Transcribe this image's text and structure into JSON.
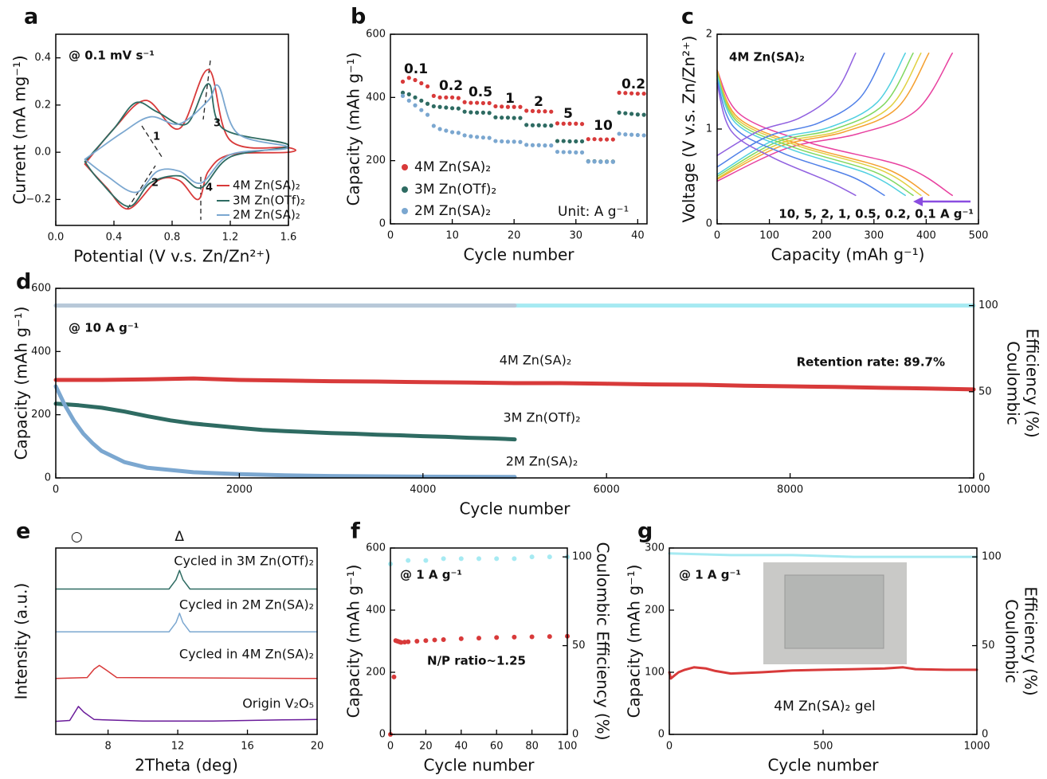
{
  "chart_data": [
    {
      "panel": "a",
      "type": "line",
      "xlabel": "Potential (V v.s. Zn/Zn²⁺)",
      "ylabel": "Current (mA mg⁻¹)",
      "annotation": "@ 0.1 mV s⁻¹",
      "peak_labels": [
        1,
        2,
        3,
        4
      ],
      "xlim": [
        0,
        1.6
      ],
      "ylim": [
        -0.31,
        0.5
      ],
      "xticks": [
        {
          "value": 0,
          "label": "0.0"
        },
        0.4,
        0.8,
        1.2,
        1.6
      ],
      "yticks": [
        {
          "value": -0.2,
          "label": "−0.2"
        },
        {
          "value": 0,
          "label": "0.0"
        },
        0.2,
        0.4
      ],
      "legend": "lower right",
      "series": [
        {
          "name": "4M Zn(SA)₂",
          "color": "#d83a3a",
          "x": [
            0.2,
            0.4,
            0.62,
            0.85,
            1.05,
            1.2,
            1.6,
            1.6,
            1.2,
            1.05,
            0.98,
            0.85,
            0.7,
            0.5,
            0.35,
            0.2
          ],
          "values": [
            -0.05,
            0.1,
            0.22,
            0.1,
            0.35,
            0.05,
            0.02,
            0.0,
            -0.01,
            -0.08,
            -0.2,
            -0.12,
            -0.12,
            -0.24,
            -0.15,
            -0.05
          ]
        },
        {
          "name": "3M Zn(OTf)₂",
          "color": "#2e6b62",
          "x": [
            0.2,
            0.4,
            0.55,
            0.7,
            0.9,
            1.05,
            1.15,
            1.6,
            1.2,
            1.0,
            0.85,
            0.65,
            0.5,
            0.3,
            0.2
          ],
          "values": [
            -0.04,
            0.1,
            0.21,
            0.17,
            0.12,
            0.29,
            0.1,
            0.03,
            -0.02,
            -0.15,
            -0.1,
            -0.13,
            -0.23,
            -0.12,
            -0.04
          ]
        },
        {
          "name": "2M Zn(SA)₂",
          "color": "#7ba7d0",
          "x": [
            0.2,
            0.45,
            0.65,
            0.85,
            1.05,
            1.12,
            1.25,
            1.6,
            1.2,
            1.0,
            0.85,
            0.7,
            0.55,
            0.35,
            0.2
          ],
          "values": [
            -0.03,
            0.08,
            0.15,
            0.12,
            0.22,
            0.28,
            0.08,
            0.02,
            -0.01,
            -0.13,
            -0.08,
            -0.08,
            -0.17,
            -0.1,
            -0.03
          ]
        }
      ]
    },
    {
      "panel": "b",
      "type": "scatter",
      "xlabel": "Cycle number",
      "ylabel": "Capacity (mAh g⁻¹)",
      "rates": [
        0.1,
        0.2,
        0.5,
        1,
        2,
        5,
        10,
        0.2
      ],
      "rate_unit": "Unit: A g⁻¹",
      "xlim": [
        0,
        41.5
      ],
      "ylim": [
        0,
        600
      ],
      "xticks": [
        0,
        10,
        20,
        30,
        40
      ],
      "yticks": [
        0,
        200,
        400,
        600
      ],
      "legend": "lower left",
      "x": [
        2,
        3,
        4,
        5,
        6,
        7,
        8,
        9,
        10,
        11,
        12,
        13,
        14,
        15,
        16,
        17,
        18,
        19,
        20,
        21,
        22,
        23,
        24,
        25,
        26,
        27,
        28,
        29,
        30,
        31,
        32,
        33,
        34,
        35,
        36,
        37,
        38,
        39,
        40,
        41
      ],
      "series": [
        {
          "name": "4M Zn(SA)₂",
          "color": "#d83a3a",
          "values": [
            450,
            462,
            455,
            445,
            435,
            405,
            400,
            400,
            400,
            398,
            385,
            383,
            383,
            382,
            382,
            372,
            371,
            370,
            370,
            370,
            358,
            357,
            356,
            356,
            355,
            318,
            317,
            317,
            317,
            316,
            268,
            268,
            267,
            267,
            267,
            415,
            414,
            413,
            412,
            412
          ]
        },
        {
          "name": "3M Zn(OTf)₂",
          "color": "#2e6b62",
          "values": [
            415,
            410,
            400,
            390,
            380,
            372,
            370,
            368,
            366,
            365,
            355,
            353,
            352,
            352,
            351,
            337,
            336,
            336,
            335,
            335,
            313,
            312,
            312,
            311,
            311,
            262,
            262,
            261,
            261,
            261,
            198,
            198,
            197,
            197,
            197,
            352,
            350,
            348,
            346,
            345
          ]
        },
        {
          "name": "2M Zn(SA)₂",
          "color": "#7ba7d0",
          "values": [
            405,
            390,
            375,
            360,
            345,
            310,
            300,
            295,
            290,
            288,
            280,
            277,
            275,
            273,
            272,
            262,
            261,
            260,
            260,
            259,
            250,
            249,
            249,
            248,
            248,
            228,
            227,
            227,
            226,
            226,
            197,
            197,
            196,
            196,
            196,
            285,
            283,
            282,
            281,
            280
          ]
        }
      ]
    },
    {
      "panel": "c",
      "type": "line",
      "xlabel": "Capacity (mAh g⁻¹)",
      "ylabel": "Voltage (V v.s. Zn/Zn²⁺)",
      "annotation": "4M Zn(SA)₂",
      "rate_annotation": "10, 5, 2, 1, 0.5, 0.2, 0.1 A g⁻¹",
      "xlim": [
        0,
        500
      ],
      "ylim": [
        0,
        2
      ],
      "xticks": [
        0,
        100,
        200,
        300,
        400,
        500
      ],
      "yticks": [
        0,
        1,
        2
      ],
      "series": [
        {
          "color": "#e8409f",
          "x": [
            0,
            45,
            180,
            360,
            450,
            null,
            0,
            135,
            270,
            382,
            450
          ],
          "values": [
            1.62,
            1.15,
            0.85,
            0.6,
            0.3,
            null,
            0.45,
            0.8,
            0.95,
            1.2,
            1.8
          ]
        },
        {
          "color": "#f5a030",
          "x": [
            0,
            40,
            162,
            324,
            405,
            null,
            0,
            122,
            243,
            344,
            405
          ],
          "values": [
            1.62,
            1.12,
            0.83,
            0.58,
            0.3,
            null,
            0.47,
            0.82,
            0.97,
            1.22,
            1.8
          ]
        },
        {
          "color": "#e0d040",
          "x": [
            0,
            39,
            156,
            312,
            390,
            null,
            0,
            117,
            234,
            332,
            390
          ],
          "values": [
            1.6,
            1.1,
            0.82,
            0.57,
            0.3,
            null,
            0.48,
            0.84,
            0.98,
            1.24,
            1.8
          ]
        },
        {
          "color": "#80d860",
          "x": [
            0,
            38,
            150,
            300,
            375,
            null,
            0,
            113,
            225,
            319,
            375
          ],
          "values": [
            1.58,
            1.08,
            0.8,
            0.55,
            0.3,
            null,
            0.5,
            0.86,
            1.0,
            1.26,
            1.8
          ]
        },
        {
          "color": "#50d0e0",
          "x": [
            0,
            36,
            144,
            288,
            360,
            null,
            0,
            108,
            216,
            306,
            360
          ],
          "values": [
            1.56,
            1.06,
            0.78,
            0.53,
            0.3,
            null,
            0.52,
            0.88,
            1.02,
            1.28,
            1.8
          ]
        },
        {
          "color": "#5080e8",
          "x": [
            0,
            32,
            128,
            256,
            320,
            null,
            0,
            96,
            192,
            272,
            320
          ],
          "values": [
            1.52,
            1.02,
            0.74,
            0.5,
            0.3,
            null,
            0.6,
            0.92,
            1.06,
            1.32,
            1.8
          ]
        },
        {
          "color": "#9060e0",
          "x": [
            0,
            27,
            106,
            212,
            265,
            null,
            0,
            80,
            159,
            225,
            265
          ],
          "values": [
            1.48,
            0.98,
            0.7,
            0.45,
            0.3,
            null,
            0.72,
            0.98,
            1.12,
            1.38,
            1.8
          ]
        }
      ]
    },
    {
      "panel": "d",
      "type": "line",
      "xlabel": "Cycle number",
      "ylabel": "Capacity (mAh g⁻¹)",
      "y2label": [
        "Coulombic",
        "Efficiency (%)"
      ],
      "annotation": "@ 10 A g⁻¹",
      "retention": "Retention rate: 89.7%",
      "legend": "inline",
      "xlim": [
        0,
        10000
      ],
      "ylim": [
        0,
        600
      ],
      "y2lim": [
        0,
        110
      ],
      "xticks": [
        0,
        2000,
        4000,
        6000,
        8000,
        10000
      ],
      "yticks": [
        0,
        200,
        400,
        600
      ],
      "y2ticks": [
        0,
        50,
        100
      ],
      "series": [
        {
          "color": "#a6eaf2",
          "axis": "y2",
          "x": [
            0,
            2000,
            4000,
            6000,
            8000,
            10000
          ],
          "values": [
            100,
            100,
            100,
            100,
            100,
            100
          ]
        },
        {
          "color": "#b8c8d8",
          "axis": "y2",
          "x": [
            0,
            1000,
            2000,
            3000,
            4000,
            5000
          ],
          "values": [
            100,
            100,
            100,
            100,
            100,
            100
          ]
        },
        {
          "name": "4M Zn(SA)₂",
          "color": "#d83a3a",
          "x": [
            0,
            500,
            1000,
            1500,
            2000,
            2500,
            3000,
            3500,
            4000,
            4500,
            5000,
            5500,
            6000,
            6500,
            7000,
            7500,
            8000,
            8500,
            9000,
            9500,
            10000
          ],
          "values": [
            310,
            310,
            312,
            315,
            310,
            308,
            306,
            305,
            303,
            302,
            300,
            300,
            298,
            296,
            295,
            292,
            290,
            288,
            285,
            283,
            280
          ]
        },
        {
          "name": "3M Zn(OTf)₂",
          "color": "#2e6b62",
          "x": [
            0,
            250,
            500,
            750,
            1000,
            1250,
            1500,
            1750,
            2000,
            2250,
            2500,
            2750,
            3000,
            3250,
            3500,
            3750,
            4000,
            4250,
            4500,
            4750,
            5000
          ],
          "values": [
            235,
            230,
            222,
            210,
            195,
            182,
            172,
            165,
            158,
            152,
            148,
            145,
            142,
            140,
            137,
            135,
            132,
            130,
            127,
            125,
            122
          ]
        },
        {
          "name": "2M Zn(SA)₂",
          "color": "#7ba7d0",
          "x": [
            0,
            100,
            200,
            300,
            400,
            500,
            750,
            1000,
            1500,
            2000,
            2500,
            3000,
            4000,
            5000
          ],
          "values": [
            290,
            230,
            180,
            140,
            110,
            85,
            50,
            32,
            18,
            12,
            8,
            6,
            4,
            3
          ]
        }
      ]
    },
    {
      "panel": "e",
      "type": "line",
      "xlabel": "2Theta (deg)",
      "ylabel": "Intensity (a.u.)",
      "legend": "inline",
      "xlim": [
        5,
        20
      ],
      "ylim": [
        0,
        10
      ],
      "xticks": [
        8,
        12,
        16,
        20
      ],
      "symbols": [
        {
          "x": 6.2,
          "label": "○"
        },
        {
          "x": 12.1,
          "label": "Δ"
        }
      ],
      "series": [
        {
          "name": "Cycled in 3M Zn(OTf)₂",
          "color": "#2e6b62",
          "x": [
            5,
            11.5,
            11.9,
            12.1,
            12.3,
            12.7,
            16.4,
            16.6,
            20
          ],
          "values": [
            7.8,
            7.8,
            8.3,
            8.8,
            8.3,
            7.8,
            7.8,
            7.8,
            7.8
          ]
        },
        {
          "name": "Cycled in 2M Zn(SA)₂",
          "color": "#7ba7d0",
          "x": [
            5,
            11.5,
            11.9,
            12.1,
            12.3,
            12.7,
            20
          ],
          "values": [
            5.5,
            5.5,
            6.0,
            6.5,
            6.0,
            5.5,
            5.5
          ]
        },
        {
          "name": "Cycled in 4M Zn(SA)₂",
          "color": "#d83a3a",
          "x": [
            5,
            6.8,
            7.2,
            7.5,
            7.9,
            8.5,
            20
          ],
          "values": [
            3.0,
            3.05,
            3.5,
            3.7,
            3.45,
            3.05,
            3.0
          ]
        },
        {
          "name": "Origin V₂O₅",
          "color": "#6a1b9a",
          "x": [
            5,
            5.8,
            6.1,
            6.3,
            6.6,
            7.2,
            10,
            14,
            18,
            20
          ],
          "values": [
            0.7,
            0.75,
            1.2,
            1.5,
            1.2,
            0.8,
            0.72,
            0.72,
            0.78,
            0.8
          ]
        }
      ]
    },
    {
      "panel": "f",
      "type": "scatter",
      "xlabel": "Cycle number",
      "ylabel": "Capacity (mAh g⁻¹)",
      "y2label": "Coulombic Efficiency (%)",
      "annotation": "@ 1 A g⁻¹",
      "np_ratio": "N/P ratio~1.25",
      "xlim": [
        0,
        100
      ],
      "ylim": [
        0,
        600
      ],
      "y2lim": [
        0,
        105
      ],
      "xticks": [
        0,
        20,
        40,
        60,
        80,
        100
      ],
      "yticks": [
        0,
        200,
        400,
        600
      ],
      "y2ticks": [
        0,
        50,
        100
      ],
      "series": [
        {
          "color": "#a6eaf2",
          "axis": "y2",
          "x": [
            0,
            10,
            20,
            30,
            40,
            50,
            60,
            70,
            80,
            90,
            100
          ],
          "values": [
            96,
            98,
            98,
            99,
            99,
            99,
            99,
            99,
            100,
            100,
            100
          ]
        },
        {
          "color": "#d83a3a",
          "x": [
            0,
            2,
            3,
            4,
            5,
            6,
            8,
            10,
            15,
            20,
            25,
            30,
            40,
            50,
            60,
            70,
            80,
            90,
            100
          ],
          "values": [
            0,
            185,
            302,
            300,
            298,
            296,
            297,
            298,
            300,
            302,
            304,
            305,
            308,
            310,
            312,
            313,
            314,
            315,
            316
          ]
        }
      ]
    },
    {
      "panel": "g",
      "type": "line",
      "xlabel": "Cycle number",
      "ylabel": "Capacity (mAh g⁻¹)",
      "y2label": [
        "Coulombic",
        "Efficiency (%)"
      ],
      "annotation": "@ 1 A g⁻¹",
      "gel_label": "4M Zn(SA)₂ gel",
      "xlim": [
        0,
        1000
      ],
      "ylim": [
        0,
        300
      ],
      "y2lim": [
        0,
        105
      ],
      "xticks": [
        0,
        500,
        1000
      ],
      "yticks": [
        0,
        100,
        200,
        300
      ],
      "y2ticks": [
        0,
        50,
        100
      ],
      "series": [
        {
          "color": "#a6eaf2",
          "axis": "y2",
          "x": [
            0,
            200,
            400,
            600,
            800,
            1000
          ],
          "values": [
            102,
            101,
            101,
            100,
            100,
            100
          ]
        },
        {
          "color": "#d83a3a",
          "x": [
            0,
            5,
            10,
            20,
            30,
            50,
            80,
            120,
            150,
            200,
            300,
            400,
            500,
            600,
            700,
            760,
            800,
            900,
            1000
          ],
          "values": [
            100,
            90,
            92,
            96,
            100,
            104,
            108,
            106,
            102,
            98,
            100,
            103,
            104,
            105,
            106,
            108,
            105,
            104,
            104
          ]
        }
      ]
    }
  ]
}
